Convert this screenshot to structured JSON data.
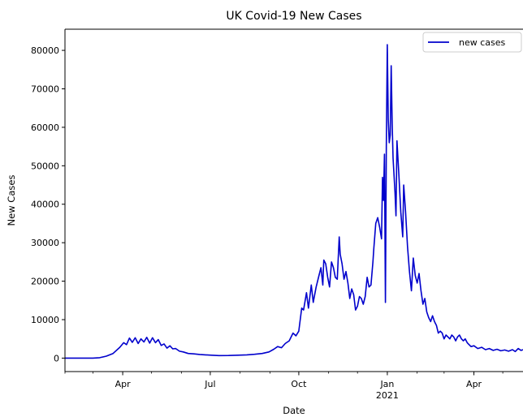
{
  "chart_data": {
    "type": "line",
    "title": "UK Covid-19 New Cases",
    "xlabel": "Date",
    "ylabel": "New Cases",
    "xlim": [
      "2020-02-01",
      "2021-05-22"
    ],
    "ylim": [
      -3500,
      85500
    ],
    "yticks": [
      0,
      10000,
      20000,
      30000,
      40000,
      50000,
      60000,
      70000,
      80000
    ],
    "xticks": [
      {
        "date": "2020-04-01",
        "label": "Apr",
        "sublabel": ""
      },
      {
        "date": "2020-07-01",
        "label": "Jul",
        "sublabel": ""
      },
      {
        "date": "2020-10-01",
        "label": "Oct",
        "sublabel": ""
      },
      {
        "date": "2021-01-01",
        "label": "Jan",
        "sublabel": "2021"
      },
      {
        "date": "2021-04-01",
        "label": "Apr",
        "sublabel": ""
      }
    ],
    "grid": false,
    "legend": {
      "position": "top-right",
      "entries": [
        "new cases"
      ]
    },
    "series": [
      {
        "name": "new cases",
        "color": "#0000cc",
        "points": [
          [
            "2020-02-01",
            0
          ],
          [
            "2020-03-01",
            0
          ],
          [
            "2020-03-08",
            100
          ],
          [
            "2020-03-15",
            500
          ],
          [
            "2020-03-22",
            1200
          ],
          [
            "2020-03-29",
            2800
          ],
          [
            "2020-04-02",
            4000
          ],
          [
            "2020-04-05",
            3500
          ],
          [
            "2020-04-08",
            5200
          ],
          [
            "2020-04-11",
            4100
          ],
          [
            "2020-04-14",
            5300
          ],
          [
            "2020-04-17",
            3800
          ],
          [
            "2020-04-20",
            5000
          ],
          [
            "2020-04-23",
            4200
          ],
          [
            "2020-04-26",
            5400
          ],
          [
            "2020-04-29",
            3900
          ],
          [
            "2020-05-02",
            5300
          ],
          [
            "2020-05-05",
            4000
          ],
          [
            "2020-05-08",
            4800
          ],
          [
            "2020-05-11",
            3300
          ],
          [
            "2020-05-14",
            3700
          ],
          [
            "2020-05-17",
            2600
          ],
          [
            "2020-05-20",
            3200
          ],
          [
            "2020-05-23",
            2400
          ],
          [
            "2020-05-26",
            2500
          ],
          [
            "2020-05-30",
            1800
          ],
          [
            "2020-06-03",
            1600
          ],
          [
            "2020-06-08",
            1200
          ],
          [
            "2020-06-14",
            1100
          ],
          [
            "2020-06-20",
            950
          ],
          [
            "2020-06-26",
            850
          ],
          [
            "2020-07-02",
            750
          ],
          [
            "2020-07-10",
            650
          ],
          [
            "2020-07-20",
            680
          ],
          [
            "2020-07-30",
            750
          ],
          [
            "2020-08-08",
            850
          ],
          [
            "2020-08-16",
            1000
          ],
          [
            "2020-08-24",
            1200
          ],
          [
            "2020-08-31",
            1600
          ],
          [
            "2020-09-05",
            2300
          ],
          [
            "2020-09-09",
            3000
          ],
          [
            "2020-09-13",
            2700
          ],
          [
            "2020-09-17",
            3800
          ],
          [
            "2020-09-21",
            4500
          ],
          [
            "2020-09-25",
            6500
          ],
          [
            "2020-09-28",
            5800
          ],
          [
            "2020-10-01",
            7000
          ],
          [
            "2020-10-04",
            13000
          ],
          [
            "2020-10-06",
            12500
          ],
          [
            "2020-10-09",
            17000
          ],
          [
            "2020-10-11",
            13000
          ],
          [
            "2020-10-14",
            19000
          ],
          [
            "2020-10-16",
            14500
          ],
          [
            "2020-10-19",
            18500
          ],
          [
            "2020-10-22",
            21500
          ],
          [
            "2020-10-24",
            23500
          ],
          [
            "2020-10-26",
            19000
          ],
          [
            "2020-10-27",
            25500
          ],
          [
            "2020-10-29",
            24500
          ],
          [
            "2020-10-31",
            21000
          ],
          [
            "2020-11-02",
            18500
          ],
          [
            "2020-11-04",
            25000
          ],
          [
            "2020-11-06",
            23500
          ],
          [
            "2020-11-08",
            21000
          ],
          [
            "2020-11-10",
            20500
          ],
          [
            "2020-11-12",
            31500
          ],
          [
            "2020-11-13",
            27000
          ],
          [
            "2020-11-15",
            24500
          ],
          [
            "2020-11-17",
            20500
          ],
          [
            "2020-11-19",
            22500
          ],
          [
            "2020-11-21",
            19500
          ],
          [
            "2020-11-23",
            15500
          ],
          [
            "2020-11-25",
            18000
          ],
          [
            "2020-11-27",
            16500
          ],
          [
            "2020-11-29",
            12500
          ],
          [
            "2020-12-01",
            13500
          ],
          [
            "2020-12-03",
            16000
          ],
          [
            "2020-12-05",
            15500
          ],
          [
            "2020-12-07",
            14000
          ],
          [
            "2020-12-09",
            16000
          ],
          [
            "2020-12-11",
            21000
          ],
          [
            "2020-12-13",
            18500
          ],
          [
            "2020-12-15",
            19000
          ],
          [
            "2020-12-17",
            25000
          ],
          [
            "2020-12-18",
            28500
          ],
          [
            "2020-12-20",
            35000
          ],
          [
            "2020-12-22",
            36500
          ],
          [
            "2020-12-24",
            34000
          ],
          [
            "2020-12-26",
            31000
          ],
          [
            "2020-12-27",
            47000
          ],
          [
            "2020-12-28",
            41000
          ],
          [
            "2020-12-29",
            53000
          ],
          [
            "2020-12-30",
            14500
          ],
          [
            "2020-12-31",
            55000
          ],
          [
            "2021-01-01",
            81500
          ],
          [
            "2021-01-02",
            62000
          ],
          [
            "2021-01-03",
            56000
          ],
          [
            "2021-01-04",
            58000
          ],
          [
            "2021-01-05",
            76000
          ],
          [
            "2021-01-06",
            61000
          ],
          [
            "2021-01-07",
            52000
          ],
          [
            "2021-01-09",
            43000
          ],
          [
            "2021-01-10",
            37000
          ],
          [
            "2021-01-11",
            56500
          ],
          [
            "2021-01-13",
            47500
          ],
          [
            "2021-01-15",
            38000
          ],
          [
            "2021-01-17",
            31500
          ],
          [
            "2021-01-18",
            45000
          ],
          [
            "2021-01-20",
            38000
          ],
          [
            "2021-01-22",
            29000
          ],
          [
            "2021-01-24",
            22500
          ],
          [
            "2021-01-26",
            17500
          ],
          [
            "2021-01-28",
            26000
          ],
          [
            "2021-01-30",
            21500
          ],
          [
            "2021-02-01",
            19500
          ],
          [
            "2021-02-03",
            22000
          ],
          [
            "2021-02-05",
            17500
          ],
          [
            "2021-02-07",
            14000
          ],
          [
            "2021-02-09",
            15500
          ],
          [
            "2021-02-11",
            12000
          ],
          [
            "2021-02-13",
            10500
          ],
          [
            "2021-02-15",
            9500
          ],
          [
            "2021-02-17",
            11000
          ],
          [
            "2021-02-19",
            9500
          ],
          [
            "2021-02-21",
            8500
          ],
          [
            "2021-02-23",
            6500
          ],
          [
            "2021-02-25",
            7000
          ],
          [
            "2021-02-27",
            6500
          ],
          [
            "2021-03-01",
            5000
          ],
          [
            "2021-03-03",
            6000
          ],
          [
            "2021-03-05",
            5500
          ],
          [
            "2021-03-07",
            5000
          ],
          [
            "2021-03-09",
            6000
          ],
          [
            "2021-03-11",
            5500
          ],
          [
            "2021-03-13",
            4500
          ],
          [
            "2021-03-15",
            5500
          ],
          [
            "2021-03-17",
            6000
          ],
          [
            "2021-03-19",
            5000
          ],
          [
            "2021-03-21",
            4500
          ],
          [
            "2021-03-23",
            5000
          ],
          [
            "2021-03-25",
            4000
          ],
          [
            "2021-03-27",
            3500
          ],
          [
            "2021-03-29",
            3000
          ],
          [
            "2021-04-01",
            3200
          ],
          [
            "2021-04-05",
            2500
          ],
          [
            "2021-04-09",
            2800
          ],
          [
            "2021-04-13",
            2200
          ],
          [
            "2021-04-17",
            2500
          ],
          [
            "2021-04-21",
            2000
          ],
          [
            "2021-04-25",
            2300
          ],
          [
            "2021-04-29",
            1900
          ],
          [
            "2021-05-03",
            2100
          ],
          [
            "2021-05-07",
            1800
          ],
          [
            "2021-05-11",
            2200
          ],
          [
            "2021-05-14",
            1700
          ],
          [
            "2021-05-17",
            2500
          ],
          [
            "2021-05-20",
            2000
          ],
          [
            "2021-05-22",
            2200
          ]
        ]
      }
    ]
  }
}
